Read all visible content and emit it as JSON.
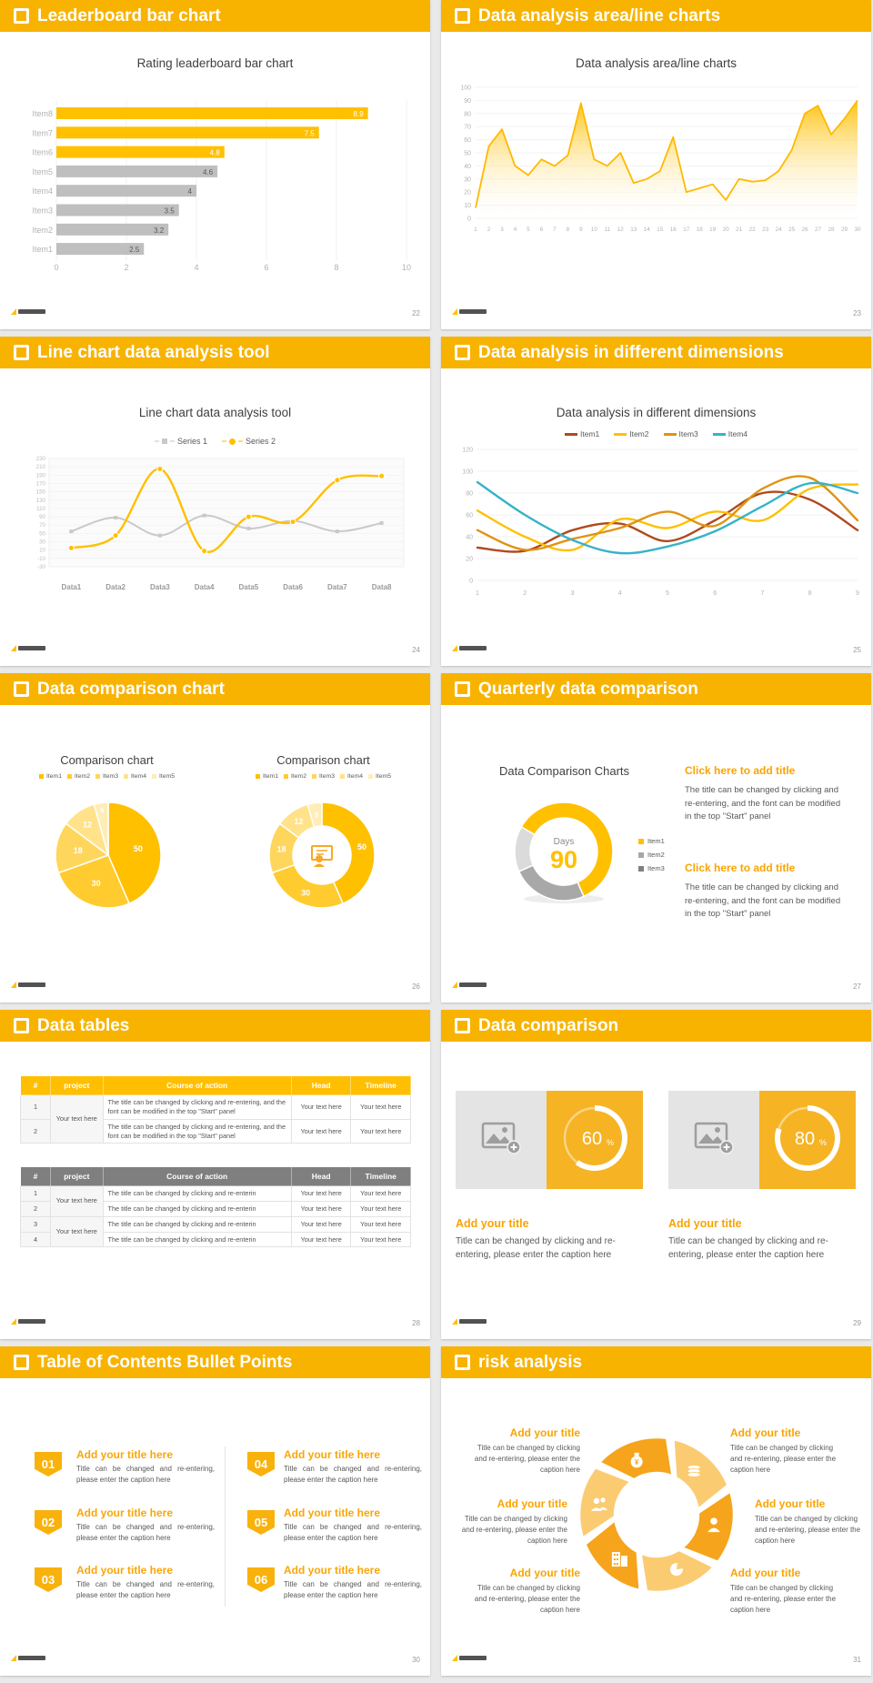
{
  "theme": {
    "header_bg": "#F8B301",
    "chart_yellow": "#FFC000",
    "bar_gray": "#BFBFBF",
    "heading_orange": "#F9A400",
    "body_gray": "#595959",
    "axis_gray": "#ABABAB"
  },
  "chart_data": [
    {
      "type": "bar",
      "orientation": "horizontal",
      "title": "Rating leaderboard bar chart",
      "categories": [
        "Item1",
        "Item2",
        "Item3",
        "Item4",
        "Item5",
        "Item6",
        "Item7",
        "Item8"
      ],
      "values": [
        2.5,
        3.2,
        3.5,
        4,
        4.6,
        4.8,
        7.5,
        8.9
      ],
      "bar_colors": [
        "#BFBFBF",
        "#BFBFBF",
        "#BFBFBF",
        "#BFBFBF",
        "#BFBFBF",
        "#FFC000",
        "#FFC000",
        "#FFC000"
      ],
      "xlim": [
        0,
        10
      ],
      "xticks": [
        0,
        2,
        4,
        6,
        8,
        10
      ],
      "grid": true
    },
    {
      "type": "area",
      "title": "Data analysis area/line charts",
      "x": [
        1,
        2,
        3,
        4,
        5,
        6,
        7,
        8,
        9,
        10,
        11,
        12,
        13,
        14,
        15,
        16,
        17,
        18,
        19,
        20,
        21,
        22,
        23,
        24,
        25,
        26,
        27,
        28,
        29,
        30
      ],
      "values": [
        8,
        55,
        68,
        40,
        33,
        45,
        40,
        48,
        88,
        45,
        40,
        50,
        27,
        30,
        36,
        62,
        20,
        23,
        26,
        14,
        30,
        28,
        29,
        36,
        52,
        80,
        86,
        64,
        76,
        90
      ],
      "ylim": [
        0,
        100
      ],
      "yticks": [
        0,
        10,
        20,
        30,
        40,
        50,
        60,
        70,
        80,
        90,
        100
      ],
      "line_color": "#FFB900",
      "grid": true
    },
    {
      "type": "line",
      "title": "Line chart data analysis tool",
      "categories": [
        "Data1",
        "Data2",
        "Data3",
        "Data4",
        "Data5",
        "Data6",
        "Data7",
        "Data8"
      ],
      "ylim": [
        -30,
        230
      ],
      "ytick_step": 20,
      "grid": true,
      "series": [
        {
          "name": "Series 1",
          "color": "#C9C9C9",
          "marker": "square",
          "values": [
            55,
            88,
            45,
            93,
            62,
            80,
            55,
            75
          ]
        },
        {
          "name": "Series 2",
          "color": "#FFC000",
          "marker": "dot",
          "values": [
            15,
            45,
            205,
            8,
            90,
            78,
            178,
            188
          ]
        }
      ]
    },
    {
      "type": "line",
      "title": "Data analysis in different dimensions",
      "x": [
        1,
        2,
        3,
        4,
        5,
        6,
        7,
        8,
        9
      ],
      "ylim": [
        0,
        120
      ],
      "yticks": [
        0,
        20,
        40,
        60,
        80,
        100,
        120
      ],
      "grid": true,
      "series": [
        {
          "name": "Item1",
          "color": "#B0491F",
          "values": [
            30,
            27,
            46,
            52,
            36,
            55,
            80,
            74,
            46
          ]
        },
        {
          "name": "Item2",
          "color": "#FFC000",
          "values": [
            64,
            40,
            28,
            56,
            48,
            63,
            55,
            84,
            88
          ]
        },
        {
          "name": "Item3",
          "color": "#E09312",
          "values": [
            46,
            28,
            38,
            48,
            63,
            50,
            84,
            94,
            55
          ]
        },
        {
          "name": "Item4",
          "color": "#35B3C8",
          "values": [
            90,
            60,
            37,
            25,
            31,
            45,
            68,
            89,
            80
          ]
        }
      ]
    },
    {
      "type": "pie",
      "title": "Comparison chart",
      "labels": [
        "Item1",
        "Item2",
        "Item3",
        "Item4",
        "Item5"
      ],
      "values": [
        50,
        30,
        18,
        12,
        5
      ],
      "colors": [
        "#FFC000",
        "#FFCB2E",
        "#FFD65C",
        "#FFE28A",
        "#FFEDB8"
      ]
    },
    {
      "type": "donut",
      "title": "Comparison chart",
      "labels": [
        "Item1",
        "Item2",
        "Item3",
        "Item4",
        "Item5"
      ],
      "values": [
        50,
        30,
        18,
        12,
        5
      ],
      "colors": [
        "#FFC000",
        "#FFCB2E",
        "#FFD65C",
        "#FFE28A",
        "#FFEDB8"
      ],
      "center_icon": "presenter-icon"
    },
    {
      "type": "donut",
      "title": "Data Comparison Charts",
      "labels": [
        "Item1",
        "Item2",
        "Item3"
      ],
      "values": [
        60,
        25,
        15
      ],
      "colors": [
        "#FFC000",
        "#A8A8A8",
        "#DBDBDB"
      ],
      "legend_colors": [
        "#FFC000",
        "#A6A6A6",
        "#808080"
      ],
      "start_angle": 300,
      "center_label": "Days",
      "center_value": "90"
    },
    {
      "type": "ring",
      "value": 60,
      "unit": "%"
    },
    {
      "type": "ring",
      "value": 80,
      "unit": "%"
    }
  ],
  "slides": {
    "bar": {
      "header": "Leaderboard bar chart",
      "page": "22"
    },
    "area": {
      "header": "Data analysis area/line charts",
      "page": "23"
    },
    "line": {
      "header": "Line chart data analysis tool",
      "page": "24"
    },
    "dims": {
      "header": "Data analysis in different dimensions",
      "page": "25"
    },
    "pies": {
      "header": "Data comparison chart",
      "page": "26"
    },
    "quarter": {
      "header": "Quarterly data comparison",
      "page": "27",
      "blocks": [
        {
          "title": "Click here to add title",
          "body": "The title can be changed by clicking and re-entering, and the font can be modified in the top \"Start\" panel"
        },
        {
          "title": "Click here to add title",
          "body": "The title can be changed by clicking and re-entering, and the font can be modified in the top \"Start\" panel"
        }
      ]
    },
    "tables": {
      "header": "Data tables",
      "page": "28",
      "table1": {
        "style": "yellow",
        "headers": [
          "#",
          "project",
          "Course of action",
          "Head",
          "Timeline"
        ],
        "rows": [
          {
            "num": "1",
            "project": "Your text here",
            "project_rowspan": 2,
            "course": "The title can be changed by clicking and re-entering, and the font can be modified in the top \"Start\" panel",
            "head": "Your text here",
            "timeline": "Your text here"
          },
          {
            "num": "2",
            "course": "The title can be changed by clicking and re-entering, and the font can be modified in the top \"Start\" panel",
            "head": "Your text here",
            "timeline": "Your text here"
          }
        ]
      },
      "table2": {
        "style": "gray",
        "headers": [
          "#",
          "project",
          "Course of action",
          "Head",
          "Timeline"
        ],
        "rows": [
          {
            "num": "1",
            "project": "Your text here",
            "project_rowspan": 2,
            "course": "The title can be changed by clicking and re-enterin",
            "head": "Your text here",
            "timeline": "Your text here"
          },
          {
            "num": "2",
            "course": "The title can be changed by clicking and re-enterin",
            "head": "Your text here",
            "timeline": "Your text here"
          },
          {
            "num": "3",
            "project": "Your text here",
            "project_rowspan": 2,
            "course": "The title can be changed by clicking and re-enterin",
            "head": "Your text here",
            "timeline": "Your text here"
          },
          {
            "num": "4",
            "course": "The title can be changed by clicking and re-enterin",
            "head": "Your text here",
            "timeline": "Your text here"
          }
        ]
      }
    },
    "compare": {
      "header": "Data comparison",
      "page": "29",
      "cards": [
        {
          "title": "Add your title",
          "body": "Title can be changed by clicking and re-entering, please enter the caption here",
          "icon": "add-image-icon"
        },
        {
          "title": "Add your title",
          "body": "Title can be changed by clicking and re-entering, please enter the caption here",
          "icon": "add-image-icon"
        }
      ]
    },
    "toc": {
      "header": "Table of Contents Bullet Points",
      "page": "30",
      "items": [
        {
          "num": "01",
          "title": "Add your title here",
          "body": "Title can be changed and re-entering, please enter the caption here"
        },
        {
          "num": "02",
          "title": "Add your title here",
          "body": "Title can be changed and re-entering, please enter the caption here"
        },
        {
          "num": "03",
          "title": "Add your title here",
          "body": "Title can be changed and re-entering, please enter the caption here"
        },
        {
          "num": "04",
          "title": "Add your title here",
          "body": "Title can be changed and re-entering, please enter the caption here"
        },
        {
          "num": "05",
          "title": "Add your title here",
          "body": "Title can be changed and re-entering, please enter the caption here"
        },
        {
          "num": "06",
          "title": "Add your title here",
          "body": "Title can be changed and re-entering, please enter the caption here"
        }
      ]
    },
    "risk": {
      "header": "risk analysis",
      "page": "31",
      "wheel_icons": [
        "coins-icon",
        "person-icon",
        "pie-chart-icon",
        "building-icon",
        "people-icon",
        "money-bag-icon"
      ],
      "items": [
        {
          "pos": "tl",
          "title": "Add your title",
          "body": "Title can be changed by clicking and re-entering, please enter the caption here"
        },
        {
          "pos": "tr",
          "title": "Add your title",
          "body": "Title can be changed by clicking and re-entering, please enter the caption here"
        },
        {
          "pos": "ml",
          "title": "Add your title",
          "body": "Title can be changed by clicking and re-entering, please enter the caption here"
        },
        {
          "pos": "mr",
          "title": "Add your title",
          "body": "Title can be changed by clicking and re-entering, please enter the caption here"
        },
        {
          "pos": "bl",
          "title": "Add your title",
          "body": "Title can be changed by clicking and re-entering, please enter the caption here"
        },
        {
          "pos": "br",
          "title": "Add your title",
          "body": "Title can be changed by clicking and re-entering, please enter the caption here"
        }
      ]
    }
  }
}
